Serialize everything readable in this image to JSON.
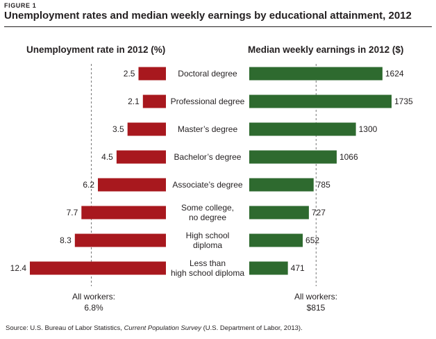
{
  "figure_label": "FIGURE 1",
  "title": "Unemployment rates and median weekly earnings by educational attainment, 2012",
  "colors": {
    "unemployment_bar": "#a8181e",
    "earnings_bar": "#2e6a2f",
    "reference_line": "#777777"
  },
  "chart_data": [
    {
      "type": "bar",
      "orientation": "horizontal",
      "direction": "right-to-left",
      "title": "Unemployment rate in 2012 (%)",
      "categories": [
        "Doctoral degree",
        "Professional degree",
        "Master’s degree",
        "Bachelor’s degree",
        "Associate’s degree",
        "Some college,\nno degree",
        "High school\ndiploma",
        "Less than\nhigh school diploma"
      ],
      "values": [
        2.5,
        2.1,
        3.5,
        4.5,
        6.2,
        7.7,
        8.3,
        12.4
      ],
      "value_labels": [
        "2.5",
        "2.1",
        "3.5",
        "4.5",
        "6.2",
        "7.7",
        "8.3",
        "12.4"
      ],
      "reference_value": 6.8,
      "reference_label_line1": "All workers:",
      "reference_label_line2": "6.8%",
      "xlim": [
        0,
        12.4
      ]
    },
    {
      "type": "bar",
      "orientation": "horizontal",
      "direction": "left-to-right",
      "title": "Median weekly earnings in 2012 ($)",
      "categories": [
        "Doctoral degree",
        "Professional degree",
        "Master’s degree",
        "Bachelor’s degree",
        "Associate’s degree",
        "Some college,\nno degree",
        "High school\ndiploma",
        "Less than\nhigh school diploma"
      ],
      "values": [
        1624,
        1735,
        1300,
        1066,
        785,
        727,
        652,
        471
      ],
      "value_labels": [
        "1624",
        "1735",
        "1300",
        "1066",
        "785",
        "727",
        "652",
        "471"
      ],
      "reference_value": 815,
      "reference_label_line1": "All workers:",
      "reference_label_line2": "$815",
      "xlim": [
        0,
        1735
      ]
    }
  ],
  "source": {
    "prefix": "Source: U.S. Bureau of Labor Statistics, ",
    "italic": "Current Population Survey",
    "suffix": " (U.S. Department of Labor, 2013)."
  }
}
